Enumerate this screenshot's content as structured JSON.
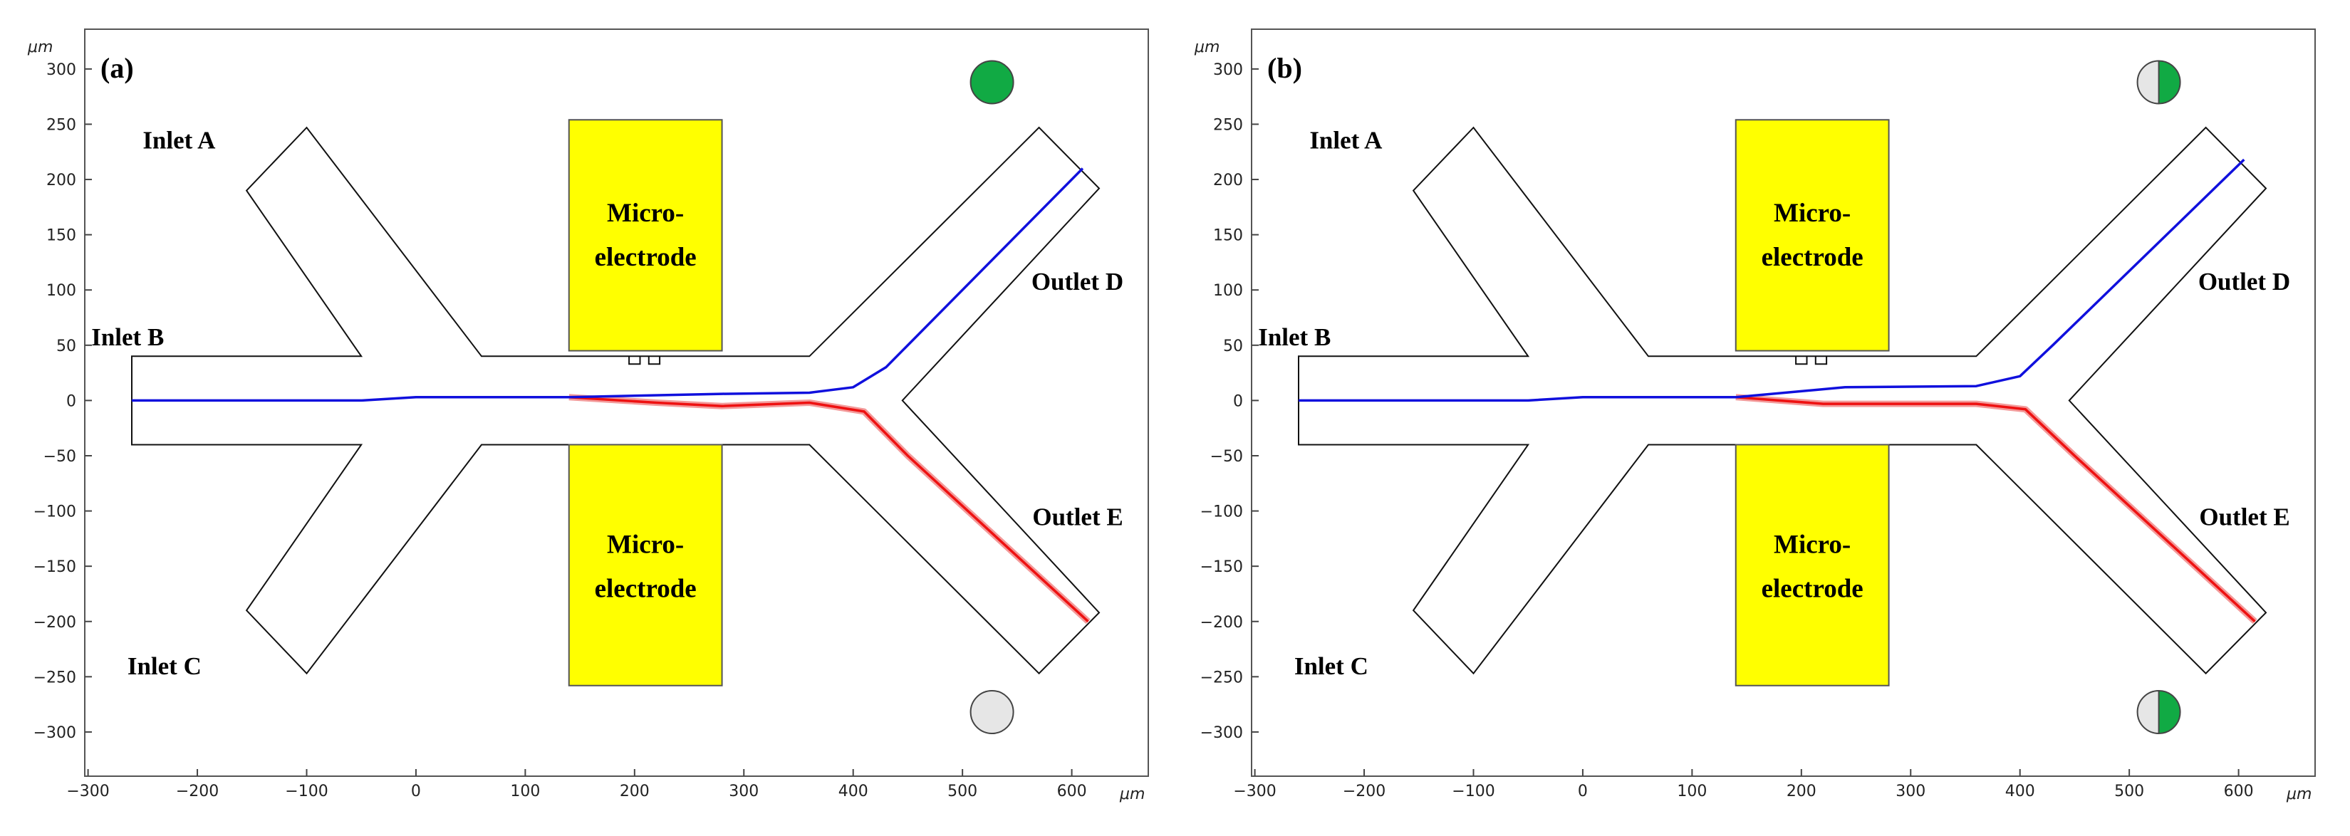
{
  "panels": [
    {
      "id": "a",
      "tag": "(a)",
      "labels": {
        "inlet_a": "Inlet A",
        "inlet_b": "Inlet B",
        "inlet_c": "Inlet C",
        "outlet_d": "Outlet D",
        "outlet_e": "Outlet E",
        "electrode_top": [
          "Micro-",
          "electrode"
        ],
        "electrode_bottom": [
          "Micro-",
          "electrode"
        ]
      },
      "indicator_top": "full-green",
      "indicator_bottom": "empty",
      "blue_path": [
        [
          -260,
          0
        ],
        [
          -50,
          0
        ],
        [
          0,
          3
        ],
        [
          140,
          3
        ],
        [
          280,
          6
        ],
        [
          360,
          7
        ],
        [
          400,
          12
        ],
        [
          430,
          30
        ],
        [
          610,
          210
        ]
      ],
      "red_path": [
        [
          140,
          3
        ],
        [
          220,
          -2
        ],
        [
          280,
          -5
        ],
        [
          360,
          -2
        ],
        [
          410,
          -10
        ],
        [
          450,
          -50
        ],
        [
          615,
          -200
        ]
      ]
    },
    {
      "id": "b",
      "tag": "(b)",
      "labels": {
        "inlet_a": "Inlet A",
        "inlet_b": "Inlet B",
        "inlet_c": "Inlet C",
        "outlet_d": "Outlet D",
        "outlet_e": "Outlet E",
        "electrode_top": [
          "Micro-",
          "electrode"
        ],
        "electrode_bottom": [
          "Micro-",
          "electrode"
        ]
      },
      "indicator_top": "half-green",
      "indicator_bottom": "half-green",
      "blue_path": [
        [
          -260,
          0
        ],
        [
          -50,
          0
        ],
        [
          0,
          3
        ],
        [
          140,
          3
        ],
        [
          240,
          12
        ],
        [
          360,
          13
        ],
        [
          400,
          22
        ],
        [
          430,
          50
        ],
        [
          605,
          218
        ]
      ],
      "red_path": [
        [
          140,
          3
        ],
        [
          220,
          -3
        ],
        [
          300,
          -3
        ],
        [
          360,
          -3
        ],
        [
          405,
          -8
        ],
        [
          450,
          -50
        ],
        [
          615,
          -200
        ]
      ]
    }
  ],
  "axes": {
    "x_ticks": [
      -300,
      -200,
      -100,
      0,
      100,
      200,
      300,
      400,
      500,
      600
    ],
    "y_ticks": [
      300,
      250,
      200,
      150,
      100,
      50,
      0,
      -50,
      -100,
      -150,
      -200,
      -250,
      -300
    ],
    "x_tick_labels": [
      "−300",
      "−200",
      "−100",
      "0",
      "100",
      "200",
      "300",
      "400",
      "500",
      "600"
    ],
    "y_tick_labels": [
      "300",
      "250",
      "200",
      "150",
      "100",
      "50",
      "0",
      "−50",
      "−100",
      "−150",
      "−200",
      "−250",
      "−300"
    ],
    "x_unit": "μm",
    "y_unit": "μm",
    "x_range": [
      -303,
      670
    ],
    "y_range": [
      -340,
      336
    ]
  },
  "colors": {
    "electrode": "#ffff00",
    "blue_trajectory": "#1010dd",
    "red_trajectory": "#ee1111",
    "indicator_green": "#11aa44",
    "indicator_gray": "#e6e6e6"
  }
}
